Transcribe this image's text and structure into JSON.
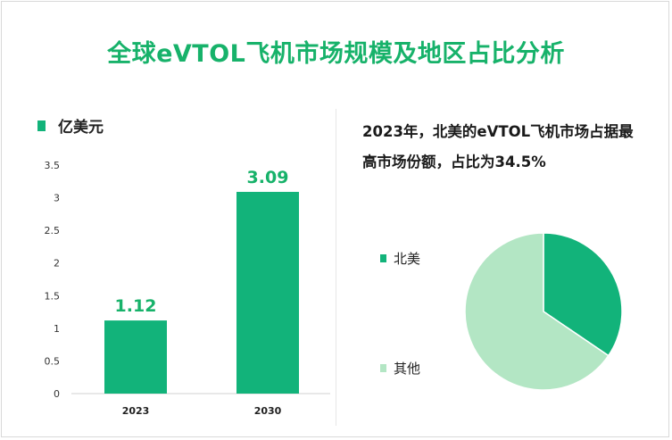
{
  "title": "全球eVTOL飞机市场规模及地区占比分析",
  "bar_legend": "亿美元",
  "note": "2023年，北美的eVTOL飞机市场占据最高市场份额，占比为34.5%",
  "colors": {
    "accent": "#17b26a",
    "bar": "#12b37a",
    "pie_main": "#12b37a",
    "pie_other": "#b3e6c4"
  },
  "chart_data": [
    {
      "type": "bar",
      "categories": [
        "2023",
        "2030"
      ],
      "values": [
        1.12,
        3.09
      ],
      "data_labels": [
        "1.12",
        "3.09"
      ],
      "ylim": [
        0,
        3.5
      ],
      "yticks": [
        "0",
        "0.5",
        "1",
        "1.5",
        "2",
        "2.5",
        "3",
        "3.5"
      ],
      "legend": "亿美元",
      "grid": false
    },
    {
      "type": "pie",
      "labels": [
        "北美",
        "其他"
      ],
      "values": [
        34.5,
        65.5
      ]
    }
  ]
}
